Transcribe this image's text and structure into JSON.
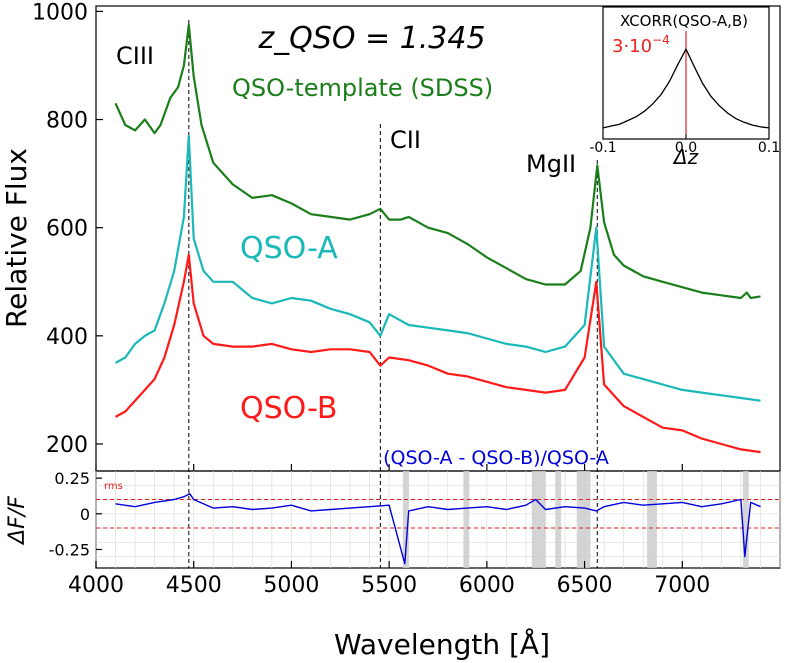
{
  "chart_data": [
    {
      "type": "line",
      "panel": "main",
      "xlabel": "Wavelength [Å]",
      "ylabel": "Relative Flux",
      "xlim": [
        4000,
        7500
      ],
      "ylim": [
        150,
        1010
      ],
      "xticks": [
        4000,
        4500,
        5000,
        5500,
        6000,
        6500,
        7000
      ],
      "xtick_labels": [
        "4000",
        "4500",
        "5000",
        "5500",
        "6000",
        "6500",
        "7000"
      ],
      "yticks": [
        200,
        400,
        600,
        800,
        1000
      ],
      "ytick_labels": [
        "200",
        "400",
        "600",
        "800",
        "1000"
      ],
      "grid": false,
      "title_annotation": "z_QSO = 1.345",
      "lines": [
        {
          "label": "CIII",
          "wavelength": 4475
        },
        {
          "label": "CII",
          "wavelength": 5455
        },
        {
          "label": "MgII",
          "wavelength": 6565
        }
      ],
      "series": [
        {
          "name": "QSO-template (SDSS)",
          "color": "#1a7f1a",
          "x": [
            4100,
            4150,
            4200,
            4250,
            4300,
            4330,
            4380,
            4420,
            4450,
            4475,
            4500,
            4540,
            4600,
            4700,
            4800,
            4900,
            5000,
            5100,
            5200,
            5300,
            5400,
            5455,
            5500,
            5560,
            5600,
            5700,
            5800,
            5900,
            6000,
            6100,
            6200,
            6300,
            6400,
            6480,
            6530,
            6565,
            6600,
            6650,
            6700,
            6800,
            6900,
            7000,
            7100,
            7200,
            7300,
            7330,
            7350,
            7400
          ],
          "y": [
            830,
            790,
            780,
            800,
            775,
            790,
            840,
            860,
            900,
            975,
            880,
            790,
            720,
            680,
            655,
            660,
            645,
            625,
            620,
            615,
            625,
            635,
            615,
            615,
            620,
            600,
            590,
            570,
            545,
            525,
            505,
            495,
            495,
            520,
            600,
            715,
            610,
            550,
            530,
            510,
            500,
            490,
            480,
            475,
            470,
            480,
            470,
            473
          ]
        },
        {
          "name": "QSO-A",
          "color": "#1ab8b8",
          "x": [
            4100,
            4150,
            4200,
            4250,
            4300,
            4350,
            4400,
            4450,
            4475,
            4500,
            4550,
            4600,
            4700,
            4800,
            4900,
            5000,
            5100,
            5200,
            5300,
            5400,
            5455,
            5500,
            5600,
            5700,
            5800,
            5900,
            6000,
            6100,
            6200,
            6300,
            6400,
            6500,
            6560,
            6600,
            6700,
            6800,
            6900,
            7000,
            7100,
            7200,
            7300,
            7400
          ],
          "y": [
            350,
            360,
            385,
            400,
            410,
            460,
            520,
            620,
            770,
            580,
            520,
            500,
            500,
            470,
            460,
            470,
            465,
            450,
            440,
            425,
            400,
            440,
            420,
            415,
            410,
            405,
            395,
            385,
            380,
            370,
            380,
            420,
            600,
            380,
            330,
            320,
            310,
            300,
            295,
            290,
            285,
            280
          ]
        },
        {
          "name": "QSO-B",
          "color": "#ff1a1a",
          "x": [
            4100,
            4150,
            4200,
            4250,
            4300,
            4350,
            4400,
            4450,
            4475,
            4500,
            4550,
            4600,
            4700,
            4800,
            4900,
            5000,
            5100,
            5200,
            5300,
            5400,
            5455,
            5500,
            5600,
            5700,
            5800,
            5900,
            6000,
            6100,
            6200,
            6300,
            6400,
            6500,
            6560,
            6600,
            6700,
            6800,
            6900,
            7000,
            7100,
            7200,
            7300,
            7400
          ],
          "y": [
            250,
            260,
            280,
            300,
            320,
            360,
            420,
            500,
            550,
            460,
            400,
            385,
            380,
            380,
            385,
            375,
            370,
            375,
            375,
            370,
            345,
            360,
            355,
            345,
            330,
            325,
            315,
            305,
            300,
            295,
            300,
            360,
            500,
            310,
            270,
            250,
            230,
            225,
            210,
            200,
            190,
            185
          ]
        }
      ],
      "inset": {
        "type": "line",
        "title": "XCORR(QSO-A,B)",
        "annotation": "3·10^-4",
        "xlabel": "Δz",
        "xlim": [
          -0.1,
          0.1
        ],
        "xticks": [
          -0.1,
          0.0,
          0.1
        ],
        "xtick_labels": [
          "-0.1",
          "0.0",
          "0.1"
        ],
        "ylim": [
          0,
          1.1
        ],
        "marker_x": 0.0,
        "series": [
          {
            "color": "#000000",
            "x": [
              -0.1,
              -0.09,
              -0.08,
              -0.07,
              -0.06,
              -0.05,
              -0.04,
              -0.03,
              -0.02,
              -0.01,
              0.0,
              0.01,
              0.02,
              0.03,
              0.04,
              0.05,
              0.06,
              0.07,
              0.08,
              0.09,
              0.1
            ],
            "y": [
              0.12,
              0.14,
              0.16,
              0.2,
              0.24,
              0.3,
              0.38,
              0.48,
              0.62,
              0.8,
              0.97,
              0.78,
              0.6,
              0.46,
              0.36,
              0.28,
              0.22,
              0.18,
              0.15,
              0.13,
              0.12
            ]
          }
        ]
      }
    },
    {
      "type": "line",
      "panel": "residual",
      "title": "(QSO-A - QSO-B)/QSO-A",
      "ylabel": "ΔF/F",
      "xlim": [
        4000,
        7500
      ],
      "ylim": [
        -0.38,
        0.3
      ],
      "yticks": [
        -0.25,
        0,
        0.25
      ],
      "ytick_labels": [
        "-0.25",
        "0",
        "0.25"
      ],
      "grid": true,
      "rms_label": "rms",
      "rms_levels": [
        0.1,
        -0.1
      ],
      "masked_regions": [
        [
          5570,
          5600
        ],
        [
          5880,
          5910
        ],
        [
          6230,
          6300
        ],
        [
          6350,
          6380
        ],
        [
          6460,
          6530
        ],
        [
          6820,
          6870
        ],
        [
          7310,
          7340
        ]
      ],
      "series": [
        {
          "name": "(QSO-A - QSO-B)/QSO-A",
          "color": "#0000dd",
          "x": [
            4100,
            4200,
            4300,
            4400,
            4450,
            4480,
            4500,
            4600,
            4700,
            4800,
            4900,
            5000,
            5100,
            5200,
            5300,
            5400,
            5500,
            5580,
            5600,
            5700,
            5800,
            5900,
            6000,
            6100,
            6200,
            6250,
            6300,
            6400,
            6500,
            6560,
            6600,
            6700,
            6800,
            6900,
            7000,
            7100,
            7200,
            7300,
            7320,
            7350,
            7400
          ],
          "y": [
            0.07,
            0.05,
            0.08,
            0.1,
            0.12,
            0.14,
            0.1,
            0.04,
            0.05,
            0.03,
            0.04,
            0.06,
            0.02,
            0.03,
            0.04,
            0.05,
            0.06,
            -0.35,
            0.02,
            0.05,
            0.03,
            0.04,
            0.05,
            0.03,
            0.06,
            0.1,
            0.03,
            0.05,
            0.04,
            0.02,
            0.05,
            0.08,
            0.06,
            0.07,
            0.08,
            0.05,
            0.07,
            0.1,
            -0.3,
            0.08,
            0.05
          ]
        }
      ]
    }
  ]
}
